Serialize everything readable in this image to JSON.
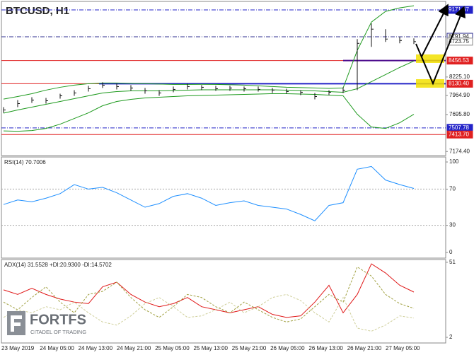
{
  "chart_data": [
    {
      "type": "ohlc",
      "title": "BTCUSD, H1",
      "ylim": [
        7117,
        9291
      ],
      "yticks": [
        {
          "value": 7174.4,
          "label": "7174.40"
        },
        {
          "value": 7695.8,
          "label": "7695.80"
        },
        {
          "value": 7964.9,
          "label": "7964.90"
        },
        {
          "value": 8225.1,
          "label": "8225.10"
        }
      ],
      "high": [
        7800,
        7900,
        7940,
        7930,
        7990,
        8040,
        8100,
        8150,
        8130,
        8110,
        8070,
        8040,
        8090,
        8130,
        8110,
        8100,
        8100,
        8090,
        8090,
        8070,
        8060,
        8040,
        8000,
        8040,
        8080,
        8760,
        8980,
        8900,
        8790,
        8770
      ],
      "low": [
        7720,
        7800,
        7860,
        7850,
        7920,
        7960,
        8020,
        8070,
        8050,
        8030,
        7990,
        7960,
        8010,
        8050,
        8040,
        8030,
        8030,
        8020,
        8020,
        8000,
        7990,
        7970,
        7910,
        7970,
        8000,
        8040,
        8650,
        8720,
        8700,
        8690
      ],
      "close": [
        7760,
        7850,
        7900,
        7890,
        7960,
        8000,
        8060,
        8110,
        8090,
        8070,
        8030,
        8000,
        8050,
        8090,
        8080,
        8060,
        8070,
        8060,
        8050,
        8040,
        8020,
        8010,
        7950,
        8010,
        8040,
        8700,
        8900,
        8760,
        8740,
        8723.75
      ],
      "bar_color": "#111111",
      "series": [
        {
          "color": "#1e9a1e",
          "values": [
            7914,
            7950,
            7990,
            8040,
            8080,
            8110,
            8130,
            8140,
            8140,
            8135,
            8130,
            8125,
            8120,
            8120,
            8122,
            8120,
            8115,
            8110,
            8100,
            8090,
            8080,
            8075,
            8070,
            8065,
            8070,
            8600,
            9000,
            9150,
            9200,
            9230
          ]
        },
        {
          "color": "#1e9a1e",
          "values": [
            7715,
            7760,
            7800,
            7840,
            7880,
            7920,
            7960,
            8000,
            8020,
            8030,
            8030,
            8030,
            8035,
            8040,
            8045,
            8045,
            8045,
            8045,
            8045,
            8045,
            8040,
            8035,
            8030,
            8020,
            8010,
            8060,
            8160,
            8260,
            8360,
            8450
          ]
        },
        {
          "color": "#1e9a1e",
          "values": [
            7465,
            7460,
            7470,
            7500,
            7560,
            7640,
            7720,
            7820,
            7880,
            7910,
            7930,
            7940,
            7950,
            7960,
            7965,
            7970,
            7975,
            7980,
            7985,
            7990,
            7990,
            7985,
            7980,
            7970,
            7960,
            7700,
            7520,
            7500,
            7580,
            7700
          ]
        }
      ],
      "levels": [
        {
          "value": 9171.67,
          "color": "#2323c8",
          "style": "dashdot"
        },
        {
          "value": 8791.94,
          "color": "#303090",
          "style": "dashdot"
        },
        {
          "value": 8456.53,
          "label": "8456.53",
          "color": "#e02020",
          "style": "solid"
        },
        {
          "value": 8130.4,
          "label": "8130.40",
          "color": "#e02020",
          "style": "solid"
        },
        {
          "value": 7507.78,
          "color": "#2323c8",
          "style": "dashdot"
        },
        {
          "value": 7413.7,
          "label": "7413.70",
          "color": "#e02020",
          "style": "solid"
        }
      ],
      "last_price": {
        "value": 8723.75,
        "label": "8723.75"
      }
    },
    {
      "type": "line",
      "title": "RSI(14) 70.7006",
      "ylim": [
        -6.25,
        105.5
      ],
      "yticks": [
        0,
        30,
        70,
        100
      ],
      "levels": [
        30,
        70
      ],
      "series": [
        {
          "color": "#1e8fff",
          "values": [
            53,
            58,
            56,
            60,
            65,
            75,
            70,
            72,
            66,
            58,
            50,
            54,
            62,
            65,
            60,
            52,
            55,
            57,
            52,
            50,
            48,
            42,
            35,
            52,
            55,
            92,
            95,
            80,
            75,
            70.7006
          ]
        }
      ]
    },
    {
      "type": "line",
      "title": "ADX(14) 31.5528 +DI:20.9300 -DI:14.5702",
      "ylim": [
        -1.7,
        52.8
      ],
      "yticks": [
        2,
        51
      ],
      "series": [
        {
          "color": "#e01818",
          "dash": false,
          "values": [
            33,
            30,
            34,
            30,
            27,
            25,
            24,
            35,
            38,
            30,
            25,
            22,
            24,
            28,
            22,
            20,
            18,
            20,
            22,
            17,
            15,
            16,
            25,
            36,
            18,
            30,
            50,
            44,
            36,
            31.5528
          ]
        },
        {
          "color": "#a0a040",
          "dash": true,
          "values": [
            25,
            20,
            28,
            35,
            25,
            18,
            30,
            32,
            38,
            28,
            20,
            15,
            22,
            30,
            28,
            22,
            18,
            25,
            20,
            15,
            12,
            14,
            22,
            30,
            25,
            48,
            42,
            30,
            24,
            20.93
          ]
        },
        {
          "color": "#cfcf9a",
          "dash": true,
          "values": [
            15,
            20,
            18,
            22,
            20,
            25,
            18,
            12,
            10,
            16,
            24,
            28,
            22,
            15,
            16,
            20,
            25,
            18,
            22,
            28,
            30,
            26,
            18,
            12,
            28,
            8,
            6,
            10,
            16,
            14.5702
          ]
        }
      ],
      "x_labels": [
        "23 May 2019",
        "24 May 05:00",
        "24 May 13:00",
        "24 May 21:00",
        "25 May 05:00",
        "25 May 13:00",
        "25 May 21:00",
        "26 May 05:00",
        "26 May 13:00",
        "26 May 21:00",
        "27 May 05:00"
      ]
    }
  ],
  "logo": {
    "name": "FORTFS",
    "tagline": "CITADEL OF TRADING"
  }
}
